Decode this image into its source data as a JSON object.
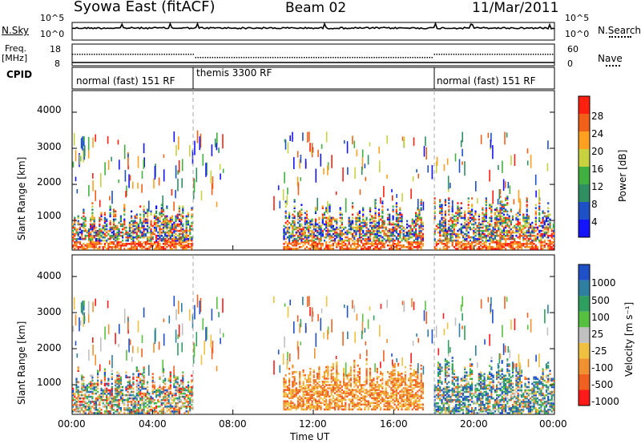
{
  "header": {
    "station": "Syowa East (fitACF)",
    "beam": "Beam 02",
    "date": "11/Mar/2011"
  },
  "strips": {
    "nsky_label": "N.Sky",
    "nsky_ticks": [
      "10^5",
      "10^0"
    ],
    "nsearch_label": "N.Search",
    "nsearch_ticks": [
      "10^5",
      "10^0"
    ],
    "freq_label_1": "Freq.",
    "freq_label_2": "[MHz]",
    "freq_ticks": [
      "18",
      "8"
    ],
    "nave_label": "Nave",
    "nave_ticks": [
      "60",
      "0"
    ],
    "cpid_label": "CPID",
    "cpid_segments": [
      {
        "label": "normal (fast) 151 RF",
        "start": 0,
        "end": 6
      },
      {
        "label": "themis 3300 RF",
        "start": 6,
        "end": 18
      },
      {
        "label": "normal (fast) 151 RF",
        "start": 18,
        "end": 24
      }
    ]
  },
  "time_axis": {
    "label": "Time UT",
    "ticks": [
      "00:00",
      "04:00",
      "08:00",
      "12:00",
      "16:00",
      "20:00",
      "00:00"
    ]
  },
  "range_axis": {
    "label": "Slant Range [km]",
    "ticks": [
      "1000",
      "2000",
      "3000",
      "4000"
    ]
  },
  "power_scale": {
    "label": "Power [dB]",
    "ticks": [
      "4",
      "8",
      "12",
      "16",
      "20",
      "24",
      "28"
    ],
    "colors": [
      "#1414ff",
      "#1e50c8",
      "#2f8f62",
      "#40b040",
      "#c8d240",
      "#ffa020",
      "#f06018",
      "#ff2010"
    ]
  },
  "velocity_scale": {
    "label": "Velocity [m s⁻¹]",
    "ticks": [
      "1000",
      "500",
      "100",
      "25",
      "-25",
      "-100",
      "-500",
      "-1000"
    ],
    "colors": [
      "#2050c8",
      "#2f7fa0",
      "#2f9f60",
      "#58c040",
      "#c0c0c0",
      "#f0c040",
      "#f09030",
      "#f06020",
      "#ff1a1a"
    ]
  },
  "chart_data": {
    "type": "heatmap",
    "title": "Syowa East (fitACF)",
    "xlabel": "Time UT",
    "ylabel": "Slant Range [km]",
    "xlim_hours": [
      0,
      24
    ],
    "ylim_km": [
      180,
      4600
    ],
    "mode_change_times_hours": [
      6,
      18
    ],
    "power_panel": {
      "colorbar_label": "Power [dB]",
      "clim": [
        0,
        32
      ],
      "echo_regions": [
        {
          "t0": 0.0,
          "t1": 6.0,
          "r0": 200,
          "r1": 1500,
          "level": "high near ground, mixed above"
        },
        {
          "t0": 10.5,
          "t1": 17.5,
          "r0": 200,
          "r1": 1600,
          "level": "mixed, strong near 300 km"
        },
        {
          "t0": 18.0,
          "t1": 24.0,
          "r0": 200,
          "r1": 1700,
          "level": "high"
        }
      ]
    },
    "velocity_panel": {
      "colorbar_label": "Velocity [m s⁻¹]",
      "levels": [
        -1000,
        -500,
        -100,
        -25,
        25,
        100,
        500,
        1000
      ],
      "echo_regions": [
        {
          "t0": 0.0,
          "t1": 6.0,
          "r0": 200,
          "r1": 1500,
          "sign": "mixed"
        },
        {
          "t0": 10.5,
          "t1": 17.5,
          "r0": 300,
          "r1": 1700,
          "sign": "negative (away)"
        },
        {
          "t0": 18.0,
          "t1": 24.0,
          "r0": 200,
          "r1": 1800,
          "sign": "positive (toward)"
        }
      ]
    }
  }
}
